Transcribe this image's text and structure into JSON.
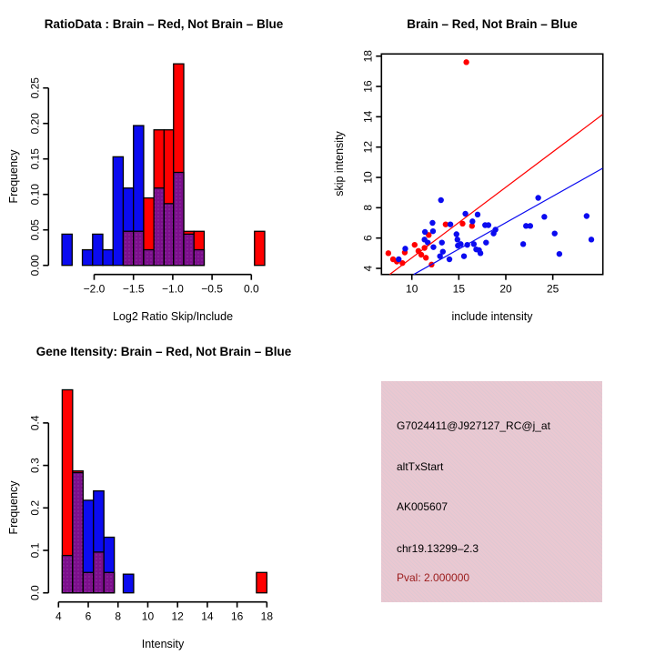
{
  "window": {
    "background": "#ffffff",
    "kind": "R graphics device, 2x2 plot layout"
  },
  "colors": {
    "red": "#ff0000",
    "blue": "#0b0bf0",
    "overlap_purple": "#7c0f8c",
    "overlap_dot": "#a040b2",
    "dark_red": "#9b1b1b",
    "pink_box": "#eac8d1",
    "axis": "#000000"
  },
  "chart_data": [
    {
      "id": "ratio_hist",
      "type": "bar",
      "subtype": "overlaid-histogram",
      "title": "RatioData : Brain – Red, Not Brain – Blue",
      "xlabel": "Log2 Ratio Skip/Include",
      "ylabel": "Frequency",
      "xticks": [
        -2.0,
        -1.5,
        -1.0,
        -0.5,
        0.0
      ],
      "xtick_labels": [
        "−2.0",
        "−1.5",
        "−1.0",
        "−0.5",
        "0.0"
      ],
      "yticks": [
        0.0,
        0.05,
        0.1,
        0.15,
        0.2,
        0.25
      ],
      "ytick_labels": [
        "0.00",
        "0.05",
        "0.10",
        "0.15",
        "0.20",
        "0.25"
      ],
      "xlim": [
        -2.45,
        0.25
      ],
      "ylim": [
        0,
        0.285
      ],
      "grid": false,
      "series": [
        {
          "name": "Brain",
          "color_key": "red"
        },
        {
          "name": "Not Brain",
          "color_key": "blue"
        }
      ],
      "bars": [
        {
          "x0": -2.41,
          "x1": -2.28,
          "red": 0,
          "blue": 0.044
        },
        {
          "x0": -2.15,
          "x1": -2.02,
          "red": 0,
          "blue": 0.022
        },
        {
          "x0": -2.02,
          "x1": -1.89,
          "red": 0,
          "blue": 0.044
        },
        {
          "x0": -1.89,
          "x1": -1.76,
          "red": 0,
          "blue": 0.022
        },
        {
          "x0": -1.76,
          "x1": -1.63,
          "red": 0,
          "blue": 0.153
        },
        {
          "x0": -1.63,
          "x1": -1.5,
          "red": 0.048,
          "blue": 0.109
        },
        {
          "x0": -1.5,
          "x1": -1.37,
          "red": 0.048,
          "blue": 0.197
        },
        {
          "x0": -1.37,
          "x1": -1.24,
          "red": 0.095,
          "blue": 0.022
        },
        {
          "x0": -1.24,
          "x1": -1.11,
          "red": 0.191,
          "blue": 0.109
        },
        {
          "x0": -1.11,
          "x1": -0.99,
          "red": 0.191,
          "blue": 0.087
        },
        {
          "x0": -0.99,
          "x1": -0.86,
          "red": 0.284,
          "blue": 0.131
        },
        {
          "x0": -0.86,
          "x1": -0.73,
          "red": 0.048,
          "blue": 0.044
        },
        {
          "x0": -0.73,
          "x1": -0.6,
          "red": 0.048,
          "blue": 0.022
        },
        {
          "x0": 0.04,
          "x1": 0.17,
          "red": 0.048,
          "blue": 0
        }
      ]
    },
    {
      "id": "intensity_scatter",
      "type": "scatter",
      "title": "Brain – Red, Not Brain – Blue",
      "xlabel": "include intensity",
      "ylabel": "skip intensity",
      "xticks": [
        10,
        15,
        20,
        25
      ],
      "xtick_labels": [
        "10",
        "15",
        "20",
        "25"
      ],
      "yticks": [
        4,
        6,
        8,
        10,
        12,
        14,
        16,
        18
      ],
      "ytick_labels": [
        "4",
        "6",
        "8",
        "10",
        "12",
        "14",
        "16",
        "18"
      ],
      "xlim": [
        6.77,
        30.3
      ],
      "ylim": [
        3.6,
        18.15
      ],
      "grid": false,
      "box": true,
      "series": [
        {
          "name": "Brain",
          "color_key": "red",
          "points": [
            [
              7.5,
              5.0
            ],
            [
              8.0,
              4.6
            ],
            [
              8.4,
              4.45
            ],
            [
              9.0,
              4.35
            ],
            [
              9.25,
              5.05
            ],
            [
              10.3,
              5.55
            ],
            [
              10.7,
              5.15
            ],
            [
              11.0,
              4.9
            ],
            [
              11.35,
              5.35
            ],
            [
              11.5,
              4.7
            ],
            [
              11.8,
              6.2
            ],
            [
              12.1,
              4.25
            ],
            [
              13.6,
              6.9
            ],
            [
              15.4,
              6.95
            ],
            [
              16.4,
              6.8
            ],
            [
              15.8,
              17.6
            ]
          ]
        },
        {
          "name": "Not Brain",
          "color_key": "blue",
          "points": [
            [
              8.6,
              4.6
            ],
            [
              9.3,
              5.3
            ],
            [
              11.35,
              5.9
            ],
            [
              11.4,
              6.4
            ],
            [
              11.7,
              5.7
            ],
            [
              12.2,
              7.0
            ],
            [
              12.25,
              6.45
            ],
            [
              12.3,
              5.4
            ],
            [
              13.0,
              4.8
            ],
            [
              13.1,
              8.5
            ],
            [
              13.2,
              5.7
            ],
            [
              13.3,
              5.1
            ],
            [
              14.0,
              4.6
            ],
            [
              14.1,
              6.9
            ],
            [
              14.75,
              6.25
            ],
            [
              14.85,
              5.9
            ],
            [
              14.9,
              5.5
            ],
            [
              15.2,
              5.6
            ],
            [
              15.55,
              4.8
            ],
            [
              15.7,
              7.6
            ],
            [
              15.9,
              5.55
            ],
            [
              16.45,
              7.1
            ],
            [
              16.6,
              5.6
            ],
            [
              16.85,
              5.25
            ],
            [
              17.0,
              7.55
            ],
            [
              17.15,
              5.2
            ],
            [
              17.3,
              5.0
            ],
            [
              17.8,
              6.85
            ],
            [
              17.9,
              5.7
            ],
            [
              18.15,
              6.85
            ],
            [
              18.7,
              6.3
            ],
            [
              18.9,
              6.55
            ],
            [
              21.85,
              5.6
            ],
            [
              22.15,
              6.8
            ],
            [
              22.6,
              6.8
            ],
            [
              23.45,
              8.65
            ],
            [
              24.1,
              7.4
            ],
            [
              25.2,
              6.3
            ],
            [
              25.7,
              4.95
            ],
            [
              28.6,
              7.45
            ],
            [
              29.1,
              5.9
            ]
          ]
        }
      ],
      "lines": [
        {
          "name": "brain-fit",
          "color_key": "red",
          "from": [
            7.65,
            3.6
          ],
          "to": [
            30.3,
            14.15
          ]
        },
        {
          "name": "not-brain-fit",
          "color_key": "blue",
          "from": [
            10.2,
            3.6
          ],
          "to": [
            30.3,
            10.6
          ]
        }
      ]
    },
    {
      "id": "gene_hist",
      "type": "bar",
      "subtype": "overlaid-histogram",
      "title": "Gene Itensity: Brain – Red, Not Brain – Blue",
      "xlabel": "Intensity",
      "ylabel": "Frequency",
      "xticks": [
        4,
        6,
        8,
        10,
        12,
        14,
        16,
        18
      ],
      "xtick_labels": [
        "4",
        "6",
        "8",
        "10",
        "12",
        "14",
        "16",
        "18"
      ],
      "yticks": [
        0.0,
        0.1,
        0.2,
        0.3,
        0.4
      ],
      "ytick_labels": [
        "0.0",
        "0.1",
        "0.2",
        "0.3",
        "0.4"
      ],
      "xlim": [
        4.0,
        18.2
      ],
      "ylim": [
        0,
        0.48
      ],
      "grid": false,
      "series": [
        {
          "name": "Brain",
          "color_key": "red"
        },
        {
          "name": "Not Brain",
          "color_key": "blue"
        }
      ],
      "bars": [
        {
          "x0": 4.25,
          "x1": 4.95,
          "red": 0.478,
          "blue": 0.088
        },
        {
          "x0": 4.95,
          "x1": 5.65,
          "red": 0.287,
          "blue": 0.283
        },
        {
          "x0": 5.65,
          "x1": 6.35,
          "red": 0.048,
          "blue": 0.218
        },
        {
          "x0": 6.35,
          "x1": 7.05,
          "red": 0.096,
          "blue": 0.24
        },
        {
          "x0": 7.05,
          "x1": 7.75,
          "red": 0.048,
          "blue": 0.131
        },
        {
          "x0": 8.35,
          "x1": 9.05,
          "red": 0,
          "blue": 0.044
        },
        {
          "x0": 17.3,
          "x1": 18.0,
          "red": 0.048,
          "blue": 0
        }
      ]
    }
  ],
  "info_box": {
    "lines": [
      "G7024411@J927127_RC@j_at",
      "altTxStart",
      "AK005607",
      "chr19.13299–2.3",
      "Pval: 2.000000"
    ]
  }
}
